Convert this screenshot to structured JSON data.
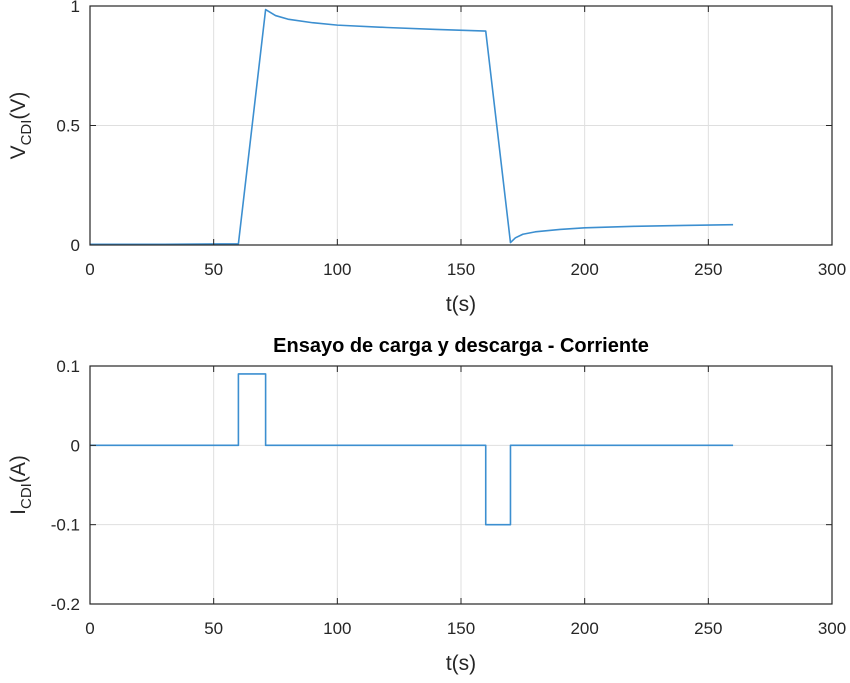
{
  "chart_data": [
    {
      "type": "line",
      "title": "",
      "xlabel": "t(s)",
      "ylabel": {
        "main": "V",
        "subscript": "CDI",
        "suffix": "(V)"
      },
      "xlim": [
        0,
        300
      ],
      "ylim": [
        0,
        1
      ],
      "xticks": [
        0,
        50,
        100,
        150,
        200,
        250,
        300
      ],
      "xtick_labels": [
        "0",
        "50",
        "100",
        "150",
        "200",
        "250",
        "300"
      ],
      "yticks": [
        0,
        0.5,
        1
      ],
      "ytick_labels": [
        "0",
        "0.5",
        "1"
      ],
      "grid": true,
      "series_color": "#3c8fd0",
      "series": [
        {
          "x": [
            0,
            30,
            60,
            71,
            75,
            80,
            90,
            100,
            120,
            140,
            160,
            170,
            172,
            175,
            180,
            190,
            200,
            220,
            240,
            260
          ],
          "y": [
            0.003,
            0.003,
            0.005,
            0.985,
            0.96,
            0.945,
            0.93,
            0.92,
            0.91,
            0.902,
            0.895,
            0.01,
            0.03,
            0.045,
            0.055,
            0.065,
            0.072,
            0.078,
            0.082,
            0.085
          ]
        }
      ]
    },
    {
      "type": "line",
      "title": "Ensayo de carga y descarga - Corriente",
      "xlabel": "t(s)",
      "ylabel": {
        "main": "I",
        "subscript": "CDI",
        "suffix": "(A)"
      },
      "xlim": [
        0,
        300
      ],
      "ylim": [
        -0.2,
        0.1
      ],
      "xticks": [
        0,
        50,
        100,
        150,
        200,
        250,
        300
      ],
      "xtick_labels": [
        "0",
        "50",
        "100",
        "150",
        "200",
        "250",
        "300"
      ],
      "yticks": [
        -0.2,
        -0.1,
        0,
        0.1
      ],
      "ytick_labels": [
        "-0.2",
        "-0.1",
        "0",
        "0.1"
      ],
      "grid": true,
      "series_color": "#3c8fd0",
      "series": [
        {
          "x": [
            0,
            60,
            60,
            71,
            71,
            160,
            160,
            170,
            170,
            260
          ],
          "y": [
            0,
            0,
            0.09,
            0.09,
            0,
            0,
            -0.1,
            -0.1,
            0,
            0
          ]
        }
      ]
    }
  ]
}
